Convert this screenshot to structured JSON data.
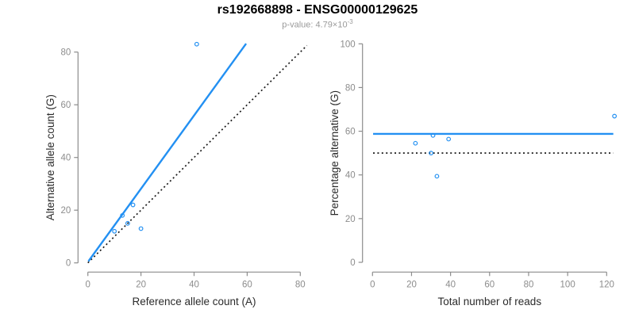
{
  "header": {
    "title": "rs192668898 - ENSG00000129625",
    "subtitle_base": "p-value: 4.79×10",
    "subtitle_exp": "-3"
  },
  "style": {
    "accent_blue": "#2390F2",
    "dotted_black": "#1a1a1a",
    "axis_gray": "#8c8c8c",
    "tick_label_gray": "#8c8c8c",
    "axis_title_color": "#2b2b2b"
  },
  "chart_data": [
    {
      "type": "scatter",
      "panel": "allele-counts",
      "xlabel": "Reference allele count (A)",
      "ylabel": "Alternative allele count (G)",
      "xlim": [
        0,
        80
      ],
      "ylim": [
        0,
        80
      ],
      "xticks": [
        0,
        20,
        40,
        60,
        80
      ],
      "yticks": [
        0,
        20,
        40,
        60,
        80
      ],
      "grid": false,
      "legend": false,
      "points": [
        [
          10,
          12
        ],
        [
          13,
          18
        ],
        [
          15,
          15
        ],
        [
          17,
          22
        ],
        [
          20,
          13
        ],
        [
          41,
          83
        ]
      ],
      "lines": [
        {
          "name": "identity-line",
          "style": "dotted",
          "color_key": "dotted_black",
          "x1": 0,
          "y1": 0,
          "x2": 82.5,
          "y2": 82.5
        },
        {
          "name": "fit-line",
          "style": "solid",
          "color_key": "accent_blue",
          "x1": 0.2,
          "y1": 0.6,
          "x2": 59.6,
          "y2": 83.2
        }
      ]
    },
    {
      "type": "scatter",
      "panel": "percentage-vs-coverage",
      "xlabel": "Total number of reads",
      "ylabel": "Percentage alternative (G)",
      "xlim": [
        0,
        120
      ],
      "ylim": [
        0,
        100
      ],
      "xticks": [
        0,
        20,
        40,
        60,
        80,
        100,
        120
      ],
      "yticks": [
        0,
        20,
        40,
        60,
        80,
        100
      ],
      "grid": false,
      "legend": false,
      "points": [
        [
          22,
          54.5
        ],
        [
          31,
          58.1
        ],
        [
          30,
          50
        ],
        [
          39,
          56.4
        ],
        [
          33,
          39.4
        ],
        [
          124,
          66.9
        ]
      ],
      "lines": [
        {
          "name": "fifty-percent-line",
          "style": "dotted",
          "color_key": "dotted_black",
          "x1": 0.3,
          "y1": 50,
          "x2": 123.4,
          "y2": 50
        },
        {
          "name": "mean-percentage-line",
          "style": "solid",
          "color_key": "accent_blue",
          "x1": 0.3,
          "y1": 58.8,
          "x2": 123.4,
          "y2": 58.8
        }
      ]
    }
  ]
}
